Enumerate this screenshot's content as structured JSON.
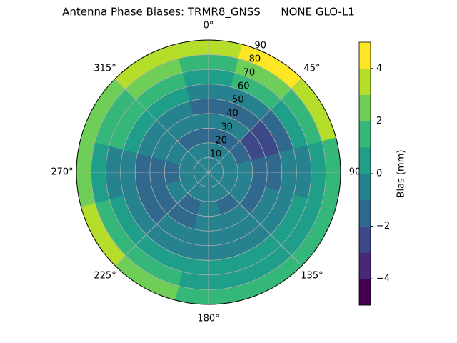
{
  "chart_data": {
    "type": "polar-contour",
    "title": "Antenna Phase Biases: TRMR8_GNSS      NONE GLO-L1",
    "azimuths": [
      0,
      30,
      60,
      90,
      120,
      150,
      180,
      210,
      240,
      270,
      300,
      330
    ],
    "zeniths": [
      5,
      15,
      25,
      35,
      45,
      55,
      65,
      75,
      85
    ],
    "z": [
      [
        -0.5,
        -1,
        -1.5,
        -1,
        -1.5,
        -1,
        0,
        1,
        3
      ],
      [
        -0.5,
        -1,
        -1.5,
        -1,
        -2,
        -1,
        1,
        2,
        4
      ],
      [
        -0.5,
        -1,
        -1.5,
        -2.5,
        -2.5,
        -1.5,
        0,
        1,
        3
      ],
      [
        -0.5,
        -0.5,
        -1,
        -1.5,
        -1.5,
        -1,
        -0.5,
        0.5,
        1.5
      ],
      [
        -0.5,
        -1,
        -1,
        -1.5,
        -1,
        -0.5,
        0,
        0.5,
        1.5
      ],
      [
        -0.5,
        -1,
        -1.5,
        -1,
        -1,
        -0.5,
        0,
        0.5,
        1
      ],
      [
        -0.5,
        -1,
        -1,
        -1,
        -0.5,
        -0.5,
        0,
        0.5,
        1
      ],
      [
        -0.5,
        -1,
        -1.5,
        -1.5,
        -1,
        -0.5,
        0.5,
        1,
        2
      ],
      [
        -0.5,
        -1,
        -1,
        -1.5,
        -2,
        -1,
        0,
        1,
        3
      ],
      [
        -0.5,
        -1,
        -1.5,
        -1.5,
        -2,
        -1,
        -0.5,
        0.5,
        2
      ],
      [
        -0.5,
        -1,
        -1,
        -1,
        -1,
        0.5,
        1,
        1,
        2
      ],
      [
        -0.5,
        -1,
        -1.5,
        -1,
        -0.5,
        0.5,
        1,
        2,
        3
      ]
    ],
    "rlim": [
      0,
      90
    ],
    "rticks": [
      10,
      20,
      30,
      40,
      50,
      60,
      70,
      80,
      90
    ],
    "thetaticks": [
      {
        "value": 0,
        "label": "0°"
      },
      {
        "value": 45,
        "label": "45°"
      },
      {
        "value": 90,
        "label": "90"
      },
      {
        "value": 135,
        "label": "135°"
      },
      {
        "value": 180,
        "label": "180°"
      },
      {
        "value": 225,
        "label": "225°"
      },
      {
        "value": 270,
        "label": "270°"
      },
      {
        "value": 315,
        "label": "315°"
      }
    ],
    "levels": [
      -5,
      -4,
      -3,
      -2,
      -1,
      0,
      1,
      2,
      3,
      4,
      5
    ],
    "colors": [
      "#440154",
      "#482878",
      "#3e4989",
      "#31688e",
      "#26828e",
      "#1f9e89",
      "#35b779",
      "#6ece58",
      "#b5de2b",
      "#fde725"
    ],
    "colorbar_label": "Bias (mm)",
    "colorbar_ticks": [
      {
        "value": -4,
        "label": "−4"
      },
      {
        "value": -2,
        "label": "−2"
      },
      {
        "value": 0,
        "label": "0"
      },
      {
        "value": 2,
        "label": "2"
      },
      {
        "value": 4,
        "label": "4"
      }
    ],
    "grid": true
  }
}
